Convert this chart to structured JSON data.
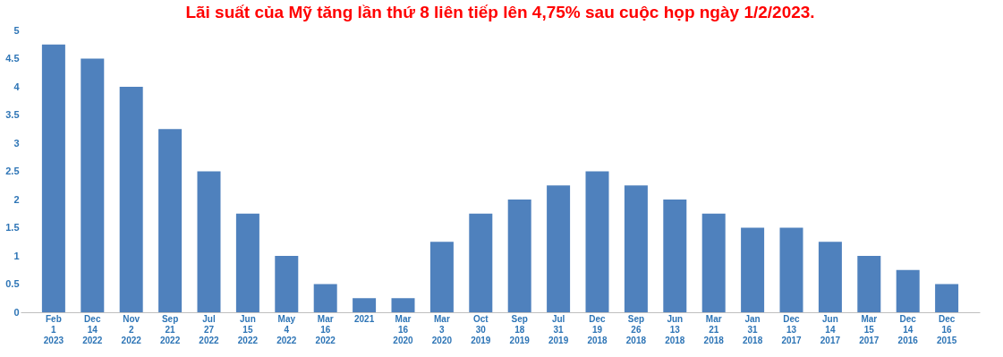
{
  "chart_data": {
    "type": "bar",
    "title": "Lãi suất của Mỹ tăng lần thứ 8 liên tiếp lên 4,75% sau cuộc họp ngày 1/2/2023.",
    "categories": [
      "Feb 1 2023",
      "Dec 14 2022",
      "Nov 2 2022",
      "Sep 21 2022",
      "Jul 27 2022",
      "Jun 15 2022",
      "May 4 2022",
      "Mar 16 2022",
      "2021",
      "Mar 16 2020",
      "Mar 3 2020",
      "Oct 30 2019",
      "Sep 18 2019",
      "Jul 31 2019",
      "Dec 19 2018",
      "Sep 26 2018",
      "Jun 13 2018",
      "Mar 21 2018",
      "Jan 31 2018",
      "Dec 13 2017",
      "Jun 14 2017",
      "Mar 15 2017",
      "Dec 14 2016",
      "Dec 16 2015"
    ],
    "values": [
      4.75,
      4.5,
      4.0,
      3.25,
      2.5,
      1.75,
      1.0,
      0.5,
      0.25,
      0.25,
      1.25,
      1.75,
      2.0,
      2.25,
      2.5,
      2.25,
      2.0,
      1.75,
      1.5,
      1.5,
      1.25,
      1.0,
      0.75,
      0.5
    ],
    "color": "#4f81bd",
    "ylim": [
      0,
      5
    ],
    "yticks": [
      0,
      0.5,
      1,
      1.5,
      2,
      2.5,
      3,
      3.5,
      4,
      4.5,
      5
    ],
    "grid": false
  }
}
